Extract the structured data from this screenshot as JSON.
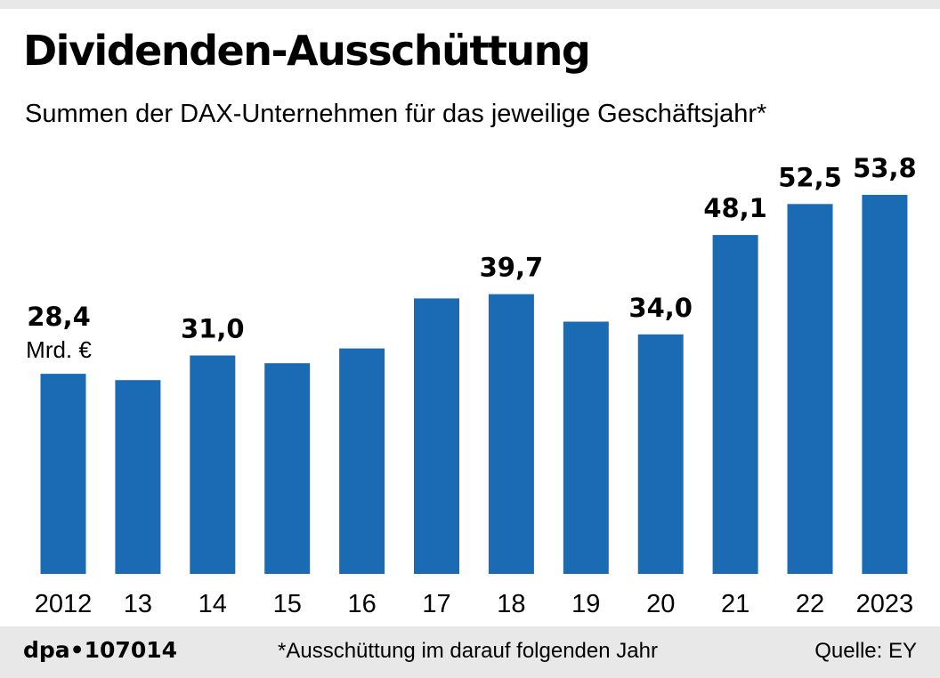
{
  "header": {
    "title": "Dividenden-Ausschüttung",
    "subtitle": "Summen der DAX-Unternehmen für das jeweilige Geschäftsjahr*"
  },
  "footer": {
    "graphic_id": "dpa•107014",
    "note": "*Ausschüttung im darauf folgenden Jahr",
    "source": "Quelle: EY"
  },
  "colors": {
    "bar": "#1a6bb4",
    "footer_background": "#e8e8e8"
  },
  "chart_data": {
    "type": "bar",
    "title": "Dividenden-Ausschüttung",
    "subtitle": "Summen der DAX-Unternehmen für das jeweilige Geschäftsjahr*",
    "unit_label": "Mrd. €",
    "categories": [
      "2012",
      "13",
      "14",
      "15",
      "16",
      "17",
      "18",
      "19",
      "20",
      "21",
      "22",
      "2023"
    ],
    "values": [
      28.4,
      27.5,
      31.0,
      29.9,
      32.0,
      39.1,
      39.7,
      35.8,
      34.0,
      48.1,
      52.5,
      53.8
    ],
    "data_labels": [
      "28,4",
      "",
      "31,0",
      "",
      "",
      "",
      "39,7",
      "",
      "34,0",
      "48,1",
      "52,5",
      "53,8"
    ],
    "ylim": [
      0,
      53.8
    ],
    "grid": false,
    "legend": "none"
  }
}
